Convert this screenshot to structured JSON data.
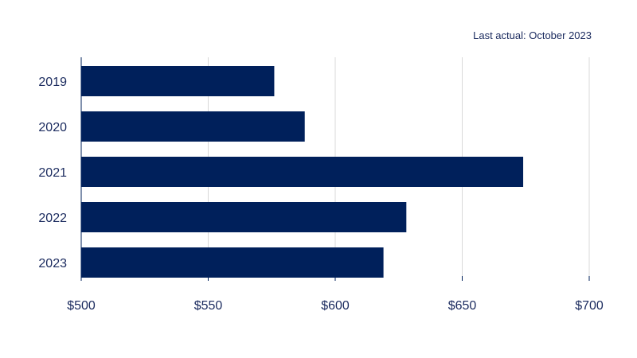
{
  "note": "Last actual:  October 2023",
  "colors": {
    "bar": "#00205b",
    "grid": "#d9d9d9",
    "text": "#1a2a5e",
    "axis": "#00205b"
  },
  "chart_data": {
    "type": "bar",
    "orientation": "horizontal",
    "title": "",
    "xlabel": "",
    "ylabel": "",
    "categories": [
      "2019",
      "2020",
      "2021",
      "2022",
      "2023"
    ],
    "values": [
      576,
      588,
      674,
      628,
      619
    ],
    "xlim": [
      500,
      700
    ],
    "xticks": [
      500,
      550,
      600,
      650,
      700
    ],
    "xtick_labels": [
      "$500",
      "$550",
      "$600",
      "$650",
      "$700"
    ],
    "grid": true
  }
}
